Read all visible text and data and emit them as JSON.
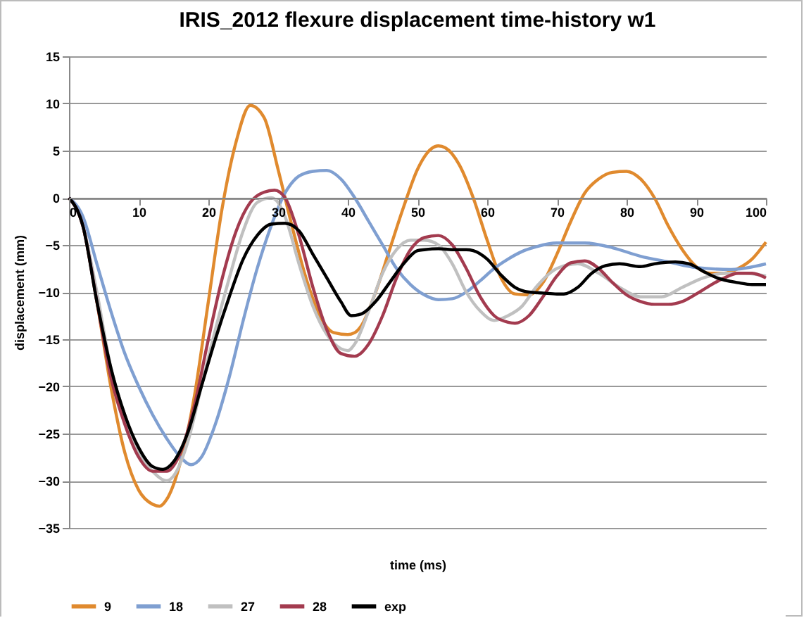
{
  "chart_data": {
    "type": "line",
    "title": "IRIS_2012 flexure displacement time-history w1",
    "xlabel": "time (ms)",
    "ylabel": "displacement (mm)",
    "xlim": [
      0,
      100
    ],
    "xticks": [
      0,
      10,
      20,
      30,
      40,
      50,
      60,
      70,
      80,
      90,
      100
    ],
    "ylim": [
      -35,
      15
    ],
    "yticks": [
      -35,
      -30,
      -25,
      -20,
      -15,
      -10,
      -5,
      0,
      5,
      10,
      15
    ],
    "grid": "y",
    "legend": "bottom",
    "marker": "none",
    "line_style": "solid",
    "series": [
      {
        "name": "9",
        "color": "#e08a2e",
        "x": [
          0,
          2,
          4,
          6,
          8,
          10,
          12,
          13,
          14,
          16,
          18,
          20,
          22,
          24,
          26,
          28,
          30,
          32,
          34,
          36,
          38,
          40,
          41,
          42,
          44,
          46,
          48,
          50,
          52,
          53,
          54,
          56,
          58,
          60,
          62,
          64,
          66,
          68,
          70,
          72,
          74,
          76,
          78,
          80,
          82,
          84,
          86,
          88,
          90,
          92,
          94,
          96,
          98,
          100
        ],
        "values": [
          0,
          -3,
          -11,
          -20,
          -27,
          -31,
          -32.5,
          -32.7,
          -32,
          -28,
          -21,
          -11,
          -1,
          6,
          9.8,
          8.5,
          3,
          -3,
          -8.5,
          -12.5,
          -14.3,
          -14.5,
          -14.3,
          -13.5,
          -10,
          -5.5,
          -1,
          3,
          5.2,
          5.5,
          5.3,
          3.5,
          0,
          -4.5,
          -8.5,
          -10.2,
          -10.3,
          -9,
          -6,
          -2.5,
          0.5,
          2,
          2.7,
          2.8,
          2,
          0,
          -3,
          -5.5,
          -7.3,
          -8,
          -8,
          -7.5,
          -6.5,
          -4.7
        ]
      },
      {
        "name": "18",
        "color": "#7f9fd1",
        "x": [
          0,
          2,
          4,
          6,
          8,
          10,
          12,
          14,
          16,
          17.5,
          19,
          21,
          23,
          25,
          27,
          29,
          31,
          33,
          35,
          37,
          39,
          41,
          43,
          45,
          47,
          49,
          51,
          53,
          55,
          57,
          59,
          61,
          63,
          65,
          67,
          70,
          74,
          78,
          82,
          86,
          90,
          95,
          100
        ],
        "values": [
          0,
          -2,
          -7,
          -12,
          -16.5,
          -20,
          -23,
          -25.5,
          -27.5,
          -28.3,
          -27.5,
          -24,
          -19,
          -13,
          -7.5,
          -3,
          0.5,
          2.3,
          2.8,
          2.9,
          2,
          0,
          -2.5,
          -5,
          -7.5,
          -9.2,
          -10.3,
          -10.8,
          -10.7,
          -10,
          -8.8,
          -7.5,
          -6.5,
          -5.7,
          -5.2,
          -4.8,
          -4.8,
          -5.3,
          -6.2,
          -6.8,
          -7.4,
          -7.6,
          -7
        ]
      },
      {
        "name": "27",
        "color": "#c0c0c0",
        "x": [
          0,
          2,
          4,
          6,
          8,
          10,
          12,
          14,
          15,
          17,
          19,
          21,
          23,
          25,
          27,
          29,
          30,
          31,
          33,
          35,
          37,
          39,
          40,
          41,
          43,
          45,
          47,
          49,
          51,
          53,
          55,
          57,
          59,
          61,
          63,
          65,
          67,
          70,
          73,
          76,
          79,
          82,
          85,
          88,
          91,
          94,
          97,
          100
        ],
        "values": [
          0,
          -3,
          -10,
          -18,
          -23,
          -27,
          -29,
          -30,
          -29.5,
          -26,
          -20,
          -14,
          -8.5,
          -3.5,
          -0.5,
          0,
          -0.5,
          -2,
          -7,
          -11.5,
          -14.5,
          -16,
          -16.2,
          -15.5,
          -12,
          -8,
          -5.5,
          -4.5,
          -4.5,
          -5,
          -7,
          -10,
          -12,
          -13,
          -12.5,
          -11.5,
          -9.5,
          -7.5,
          -7,
          -8,
          -9.5,
          -10.5,
          -10.5,
          -9.5,
          -8.5,
          -8,
          -8,
          -8.3
        ]
      },
      {
        "name": "28",
        "color": "#a33b4f",
        "x": [
          0,
          2,
          4,
          6,
          8,
          10,
          12,
          14,
          16,
          18,
          20,
          22,
          24,
          26,
          28,
          29.5,
          31,
          33,
          35,
          37,
          39,
          41,
          43,
          45,
          47,
          49,
          51,
          53,
          55,
          57,
          59,
          61,
          63,
          64,
          66,
          68,
          70,
          72,
          74,
          76,
          78,
          80,
          82,
          84,
          86,
          88,
          90,
          92,
          94,
          96,
          98,
          100
        ],
        "values": [
          0,
          -3,
          -11,
          -19,
          -24,
          -27.5,
          -29,
          -29,
          -27,
          -22,
          -15,
          -8.5,
          -3.5,
          -0.5,
          0.6,
          0.8,
          0,
          -4,
          -9.5,
          -14,
          -16.5,
          -16.8,
          -15.5,
          -12.5,
          -8.5,
          -5.5,
          -4.2,
          -4,
          -5,
          -7.5,
          -10.5,
          -12.5,
          -13.2,
          -13.3,
          -12.5,
          -10.5,
          -8.3,
          -6.9,
          -6.7,
          -7.5,
          -9,
          -10.3,
          -11,
          -11.3,
          -11.3,
          -11,
          -10.2,
          -9.3,
          -8.5,
          -8,
          -8,
          -8.5
        ]
      },
      {
        "name": "exp",
        "color": "#000000",
        "x": [
          0,
          2,
          4,
          6,
          8,
          10,
          12,
          13.5,
          15,
          17,
          19,
          21,
          23,
          25,
          27,
          29,
          31,
          33,
          35,
          37,
          39,
          40.5,
          42,
          44,
          46,
          48,
          50,
          51,
          53,
          55,
          57,
          58,
          60,
          62,
          64,
          66,
          68,
          70,
          71,
          73,
          75,
          77,
          79,
          82,
          84,
          87,
          89,
          91,
          93,
          96,
          98,
          100
        ],
        "values": [
          0,
          -3,
          -11,
          -18,
          -23,
          -26.5,
          -28.5,
          -28.8,
          -28,
          -25,
          -20,
          -15,
          -10.5,
          -6.5,
          -4,
          -2.8,
          -2.7,
          -3.5,
          -6,
          -8.5,
          -11,
          -12.5,
          -12.3,
          -11,
          -9,
          -7,
          -5.6,
          -5.5,
          -5.4,
          -5.5,
          -5.5,
          -5.6,
          -6.5,
          -8.2,
          -9.5,
          -10,
          -10.1,
          -10.2,
          -10.2,
          -9.5,
          -8,
          -7.2,
          -7,
          -7.3,
          -7,
          -6.8,
          -7,
          -7.8,
          -8.5,
          -9,
          -9.2,
          -9.2
        ]
      }
    ]
  }
}
